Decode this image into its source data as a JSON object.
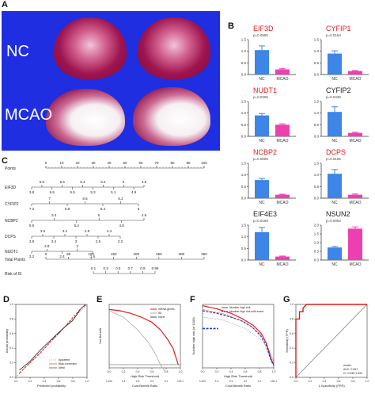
{
  "panels": {
    "A": {
      "label": "A",
      "groups": [
        "NC",
        "MCAO"
      ]
    },
    "B": {
      "label": "B"
    },
    "C": {
      "label": "C"
    },
    "D": {
      "label": "D"
    },
    "E": {
      "label": "E"
    },
    "F": {
      "label": "F"
    },
    "G": {
      "label": "G"
    }
  },
  "colors": {
    "red": "#e41a1c",
    "blue_bar": "#3d85e6",
    "pink_bar": "#ee3fb1",
    "photo_bg": "#1f2ee0"
  },
  "bar_charts": [
    {
      "gene": "EIF3D",
      "p": "p=0.0550",
      "title_color": "red",
      "nc": 1.05,
      "nc_err": 0.18,
      "mcao": 0.22,
      "mcao_err": 0.03,
      "ymax": 1.5,
      "ticks": [
        "1.5",
        "1.0",
        "0.5",
        "0.0"
      ]
    },
    {
      "gene": "CYFIP1",
      "p": "p=0.0164",
      "title_color": "red",
      "nc": 0.9,
      "nc_err": 0.12,
      "mcao": 0.15,
      "mcao_err": 0.02,
      "ymax": 1.5,
      "ticks": [
        "1.5",
        "1.0",
        "0.5",
        "0.0"
      ]
    },
    {
      "gene": "NUDT1",
      "p": "p=0.0306",
      "title_color": "red",
      "nc": 0.9,
      "nc_err": 0.08,
      "mcao": 0.5,
      "mcao_err": 0.04,
      "ymax": 1.5,
      "ticks": [
        "1.5",
        "1.0",
        "0.5",
        "0.0"
      ]
    },
    {
      "gene": "CYFIP2",
      "p": "p=0.0436",
      "title_color": "black",
      "nc": 1.05,
      "nc_err": 0.22,
      "mcao": 0.15,
      "mcao_err": 0.03,
      "ymax": 1.5,
      "ticks": [
        "1.5",
        "1.0",
        "0.5",
        "0.0"
      ]
    },
    {
      "gene": "NCBP2",
      "p": "p=0.0005",
      "title_color": "red",
      "nc": 0.78,
      "nc_err": 0.07,
      "mcao": 0.15,
      "mcao_err": 0.02,
      "ymax": 1.5,
      "ticks": [
        "1.5",
        "1.0",
        "0.5",
        "0.0"
      ]
    },
    {
      "gene": "DCPS",
      "p": "p=0.0155",
      "title_color": "red",
      "nc": 1.05,
      "nc_err": 0.18,
      "mcao": 0.15,
      "mcao_err": 0.03,
      "ymax": 1.5,
      "ticks": [
        "1.5",
        "1.0",
        "0.5",
        "0.0"
      ]
    },
    {
      "gene": "EIF4E3",
      "p": "p=0.0169",
      "title_color": "black",
      "nc": 1.2,
      "nc_err": 0.2,
      "mcao": 0.15,
      "mcao_err": 0.02,
      "ymax": 1.5,
      "ticks": [
        "1.5",
        "1.0",
        "0.5",
        "0.0"
      ]
    },
    {
      "gene": "NSUN2",
      "p": "p=0.0053",
      "title_color": "black",
      "nc": 0.72,
      "nc_err": 0.06,
      "mcao": 1.8,
      "mcao_err": 0.1,
      "ymax": 2.0,
      "ticks": [
        "2.0",
        "1.5",
        "1.0",
        "0.5",
        "0.0"
      ]
    }
  ],
  "bar_categories": [
    "NC",
    "MCAO"
  ],
  "nomogram": {
    "rows": [
      {
        "name": "Points",
        "labels": [
          "0",
          "10",
          "20",
          "30",
          "40",
          "50",
          "60",
          "70",
          "80",
          "90",
          "100"
        ]
      },
      {
        "name": "EIF3D",
        "labels": [
          "3.8",
          "6.6",
          "6.5",
          "6.6",
          "5.5",
          "5.4",
          "5.3",
          "5.2",
          "5.1",
          "5",
          "4.9",
          "4.8"
        ]
      },
      {
        "name": "CYFIP2",
        "labels": [
          "7.2",
          "7",
          "6.8",
          "6.6",
          "6.4",
          "6.2",
          "6"
        ]
      },
      {
        "name": "NCBP2",
        "labels": [
          "5.6",
          "5.4",
          "5.2",
          "5",
          "4.8",
          "4.6"
        ]
      },
      {
        "name": "DCPS",
        "labels": [
          "3.8",
          "3.6",
          "3.4",
          "3.2",
          "3",
          "2.8",
          "2.6",
          "2.4",
          "2.2"
        ]
      },
      {
        "name": "NUDT1",
        "labels": [
          "3.2",
          "2.8",
          "2.4",
          "2",
          "1.6"
        ]
      },
      {
        "name": "Total Points",
        "labels": [
          "0",
          "50",
          "100",
          "150",
          "200",
          "250",
          "300",
          "350"
        ]
      },
      {
        "name": "Risk of IS",
        "labels": [
          "0.1",
          "0.3",
          "0.5",
          "0.7",
          "0.9",
          "0.99"
        ]
      }
    ]
  },
  "calibration": {
    "xlabel": "Predicted probability",
    "ylabel": "Actual probability",
    "legend": [
      "Apparent",
      "Bias-corrected",
      "Ideal"
    ],
    "ticks": [
      "0.0",
      "0.2",
      "0.4",
      "0.6",
      "0.8",
      "1.0"
    ]
  },
  "dca": {
    "xlabel": "High Risk Threshold",
    "ylabel": "Net Benefit",
    "xlabel2": "Cost:Benefit Ratio",
    "legend": [
      "mRNA genes",
      "All",
      "None"
    ],
    "xticks": [
      "0.0",
      "0.2",
      "0.4",
      "0.6",
      "0.8",
      "1.0"
    ],
    "xticks2": [
      "1:100",
      "1:4",
      "2:3",
      "3:2",
      "4:1",
      "100:1"
    ]
  },
  "cic": {
    "xlabel": "High Risk Threshold",
    "ylabel": "Number high risk (of 1000)",
    "xlabel2": "Cost:Benefit Ratio",
    "legend": [
      "Number high risk",
      "Number high risk with event"
    ],
    "xticks": [
      "0.0",
      "0.2",
      "0.4",
      "0.6",
      "0.8",
      "1.0"
    ],
    "xticks2": [
      "1:100",
      "1:4",
      "2:3",
      "3:2",
      "4:1",
      "100:1"
    ]
  },
  "roc": {
    "xlabel": "1-Specificity (FPR)",
    "ylabel": "Sensitivity (TPR)",
    "legend_title": "model",
    "auc": "AUC: 0.967",
    "ci": "CI: 0.930-1.000",
    "ticks": [
      "0.0",
      "0.2",
      "0.4",
      "0.6",
      "0.8",
      "1.0"
    ],
    "fpr": [
      0,
      0,
      0,
      0.05,
      0.05,
      0.1,
      0.1,
      0.15,
      0.3,
      1.0
    ],
    "tpr": [
      0,
      0.55,
      0.8,
      0.8,
      0.9,
      0.9,
      0.95,
      1.0,
      1.0,
      1.0
    ]
  }
}
